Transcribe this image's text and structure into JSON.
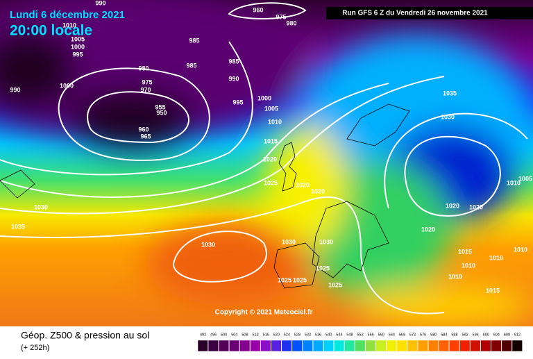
{
  "header": {
    "date": "Lundi 6 décembre 2021",
    "time": "20:00 locale",
    "run": "Run GFS 6 Z du Vendredi 26 novembre 2021"
  },
  "copyright": "Copyright © 2021 Meteociel.fr",
  "footer": {
    "title": "Géop. Z500 & pression au sol",
    "lead": "(+ 252h)"
  },
  "isobars": [
    990,
    960,
    975,
    980,
    1010,
    1005,
    1000,
    995,
    985,
    985,
    980,
    975,
    970,
    990,
    1000,
    985,
    990,
    995,
    1000,
    1005,
    1010,
    955,
    950,
    960,
    965,
    1015,
    1020,
    1025,
    1020,
    1020,
    1030,
    1035,
    1030,
    1030,
    1030,
    1025,
    1025,
    1025,
    1025,
    1035,
    1030,
    1010,
    1005,
    1020,
    1020,
    1020,
    1015,
    1010,
    1010,
    1010,
    1010,
    1015
  ],
  "legend": {
    "values": [
      492,
      496,
      500,
      504,
      508,
      512,
      516,
      520,
      524,
      528,
      532,
      536,
      540,
      544,
      548,
      552,
      556,
      560,
      564,
      568,
      572,
      576,
      580,
      584,
      588,
      592,
      596,
      600,
      604,
      608,
      612
    ],
    "colors": [
      "#2a0028",
      "#3c0040",
      "#520058",
      "#6a0072",
      "#82008c",
      "#9a00a8",
      "#8a10c8",
      "#5a20e0",
      "#2030f0",
      "#0050ff",
      "#0080ff",
      "#00a8ff",
      "#00d0ff",
      "#00e8e0",
      "#20e8a0",
      "#50e060",
      "#90e040",
      "#c8f020",
      "#f0f000",
      "#ffe000",
      "#ffc000",
      "#ffa000",
      "#ff8000",
      "#ff6000",
      "#ff4000",
      "#f02000",
      "#d01000",
      "#b00000",
      "#800000",
      "#500000",
      "#100000"
    ]
  }
}
